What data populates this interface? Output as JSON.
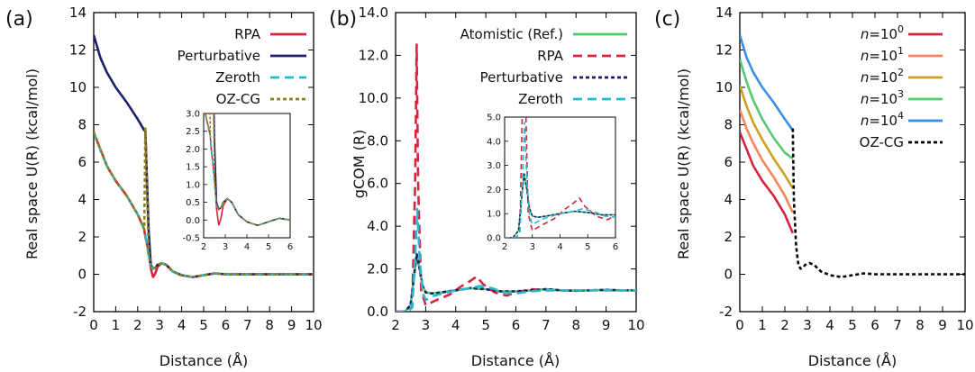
{
  "panels": [
    {
      "label": "(a)",
      "xlabel": "Distance (Å)",
      "ylabel": "Real space U(R) (kcal/mol)"
    },
    {
      "label": "(b)",
      "xlabel": "Distance (Å)",
      "ylabel": "gCOM (R)"
    },
    {
      "label": "(c)",
      "xlabel": "Distance (Å)",
      "ylabel": "Real space U(R) (kcal/mol)"
    }
  ],
  "chart_data": [
    {
      "type": "line",
      "label": "(a)",
      "xlabel": "Distance (Å)",
      "ylabel": "Real space U(R) (kcal/mol)",
      "xlim": [
        0,
        10
      ],
      "ylim": [
        -2,
        14
      ],
      "xticks": [
        "0",
        "1",
        "2",
        "3",
        "4",
        "5",
        "6",
        "7",
        "8",
        "9",
        "10"
      ],
      "yticks": [
        "-2",
        "0",
        "2",
        "4",
        "6",
        "8",
        "10",
        "12",
        "14"
      ],
      "legend_position": "top-right",
      "series": [
        {
          "name": "RPA",
          "color": "#d6243f",
          "style": "solid",
          "x": [
            0,
            0.3,
            0.6,
            1,
            1.5,
            2,
            2.3,
            2.35,
            2.5,
            2.6,
            2.7,
            2.8,
            2.9,
            3.1,
            3.3,
            3.6,
            4,
            4.5,
            5,
            5.5,
            6,
            7,
            8,
            9,
            10
          ],
          "y": [
            7.6,
            6.7,
            5.8,
            5.0,
            4.2,
            3.2,
            2.4,
            2.0,
            1.2,
            0.3,
            -0.15,
            0.05,
            0.4,
            0.6,
            0.5,
            0.15,
            -0.05,
            -0.15,
            -0.05,
            0.05,
            0.0,
            0,
            0,
            0,
            0
          ]
        },
        {
          "name": "Perturbative",
          "color": "#1c1f6e",
          "style": "solid",
          "x": [
            0,
            0.3,
            0.6,
            1,
            1.5,
            2,
            2.3,
            2.35,
            2.5,
            2.6,
            2.7,
            2.8,
            2.9,
            3.1,
            3.3,
            3.6,
            4,
            4.5,
            5,
            5.5,
            6,
            7,
            8,
            9,
            10
          ],
          "y": [
            12.8,
            11.6,
            10.8,
            10.0,
            9.2,
            8.3,
            7.7,
            7.7,
            2.3,
            0.5,
            0.3,
            0.35,
            0.5,
            0.6,
            0.5,
            0.15,
            -0.05,
            -0.15,
            -0.05,
            0.05,
            0.0,
            0,
            0,
            0,
            0
          ]
        },
        {
          "name": "Zeroth",
          "color": "#29b9cf",
          "style": "dashed",
          "x": [
            0,
            0.3,
            0.6,
            1,
            1.5,
            2,
            2.3,
            2.35,
            2.5,
            2.6,
            2.7,
            2.8,
            2.9,
            3.1,
            3.3,
            3.6,
            4,
            4.5,
            5,
            5.5,
            6,
            7,
            8,
            9,
            10
          ],
          "y": [
            7.6,
            6.7,
            5.8,
            5.0,
            4.2,
            3.2,
            2.4,
            2.1,
            1.0,
            0.4,
            0.3,
            0.35,
            0.5,
            0.6,
            0.5,
            0.15,
            -0.05,
            -0.15,
            -0.05,
            0.05,
            0.0,
            0,
            0,
            0,
            0
          ]
        },
        {
          "name": "OZ-CG",
          "color": "#8d7b1f",
          "style": "dotted",
          "x": [
            0,
            0.3,
            0.6,
            1,
            1.5,
            2,
            2.3,
            2.35,
            2.5,
            2.6,
            2.7,
            2.8,
            2.9,
            3.1,
            3.3,
            3.6,
            4,
            4.5,
            5,
            5.5,
            6,
            7,
            8,
            9,
            10
          ],
          "y": [
            7.6,
            6.7,
            5.8,
            5.0,
            4.2,
            3.2,
            2.4,
            7.8,
            1.2,
            0.4,
            0.3,
            0.35,
            0.5,
            0.6,
            0.5,
            0.15,
            -0.05,
            -0.15,
            -0.05,
            0.05,
            0.0,
            0,
            0,
            0,
            0
          ]
        }
      ],
      "inset": {
        "xlim": [
          2,
          6
        ],
        "ylim": [
          -0.5,
          3.0
        ],
        "xticks": [
          "2",
          "3",
          "4",
          "5",
          "6"
        ],
        "yticks": [
          "-0.5",
          "0.0",
          "0.5",
          "1.0",
          "1.5",
          "2.0",
          "2.5",
          "3.0"
        ]
      }
    },
    {
      "type": "line",
      "label": "(b)",
      "xlabel": "Distance (Å)",
      "ylabel": "gCOM (R)",
      "xlim": [
        2,
        10
      ],
      "ylim": [
        0,
        14
      ],
      "xticks": [
        "2",
        "3",
        "4",
        "5",
        "6",
        "7",
        "8",
        "9",
        "10"
      ],
      "yticks": [
        "0.0",
        "2.0",
        "4.0",
        "6.0",
        "8.0",
        "10.0",
        "12.0",
        "14.0"
      ],
      "legend_position": "top-right",
      "series": [
        {
          "name": "Atomistic (Ref.)",
          "color": "#4ec96a",
          "style": "solid",
          "x": [
            2,
            2.3,
            2.5,
            2.6,
            2.7,
            2.8,
            2.9,
            3.0,
            3.2,
            3.5,
            4,
            4.5,
            5,
            5.5,
            6,
            6.5,
            7,
            7.5,
            8,
            8.5,
            9,
            9.5,
            10
          ],
          "y": [
            0,
            0,
            0.3,
            1.5,
            2.6,
            2.0,
            1.2,
            0.9,
            0.85,
            0.9,
            1.0,
            1.1,
            1.05,
            0.95,
            0.95,
            1.0,
            1.05,
            1.0,
            0.98,
            1.0,
            1.02,
            1.0,
            1.0
          ]
        },
        {
          "name": "RPA",
          "color": "#d6243f",
          "style": "dashed",
          "x": [
            2,
            2.4,
            2.55,
            2.65,
            2.7,
            2.75,
            2.85,
            3.0,
            3.3,
            3.8,
            4.2,
            4.5,
            4.7,
            4.9,
            5.3,
            5.7,
            6.0,
            6.5,
            7,
            7.5,
            8,
            8.5,
            9,
            9.5,
            10
          ],
          "y": [
            0,
            0,
            0.2,
            6.0,
            12.5,
            6.0,
            1.0,
            0.3,
            0.5,
            0.8,
            1.2,
            1.45,
            1.65,
            1.3,
            0.9,
            0.75,
            0.9,
            1.05,
            1.0,
            1.0,
            1.0,
            1.0,
            1.0,
            1.0,
            1.0
          ]
        },
        {
          "name": "Perturbative",
          "color": "#1c1f6e",
          "style": "dotted",
          "x": [
            2,
            2.3,
            2.5,
            2.6,
            2.7,
            2.8,
            2.9,
            3.0,
            3.2,
            3.5,
            4,
            4.5,
            5,
            5.5,
            6,
            6.5,
            7,
            7.5,
            8,
            8.5,
            9,
            9.5,
            10
          ],
          "y": [
            0,
            0,
            0.3,
            1.5,
            2.7,
            2.0,
            1.2,
            0.9,
            0.85,
            0.9,
            1.0,
            1.1,
            1.05,
            0.95,
            0.95,
            1.0,
            1.05,
            1.0,
            0.98,
            1.0,
            1.02,
            1.0,
            1.0
          ]
        },
        {
          "name": "Zeroth",
          "color": "#29b9cf",
          "style": "dashed",
          "x": [
            2,
            2.4,
            2.55,
            2.65,
            2.72,
            2.8,
            2.9,
            3.0,
            3.3,
            3.7,
            4,
            4.5,
            4.8,
            5.2,
            5.6,
            6,
            6.5,
            7,
            7.5,
            8,
            8.5,
            9,
            9.5,
            10
          ],
          "y": [
            0,
            0,
            0.2,
            2.5,
            4.8,
            2.5,
            0.9,
            0.55,
            0.75,
            0.9,
            1.0,
            1.1,
            1.2,
            1.1,
            0.9,
            0.85,
            0.95,
            1.0,
            1.0,
            1.0,
            1.0,
            1.0,
            1.0,
            1.0
          ]
        }
      ],
      "inset": {
        "xlim": [
          2,
          6
        ],
        "ylim": [
          0,
          5.0
        ],
        "xticks": [
          "2",
          "3",
          "4",
          "5",
          "6"
        ],
        "yticks": [
          "0.0",
          "1.0",
          "2.0",
          "3.0",
          "4.0",
          "5.0"
        ]
      }
    },
    {
      "type": "line",
      "label": "(c)",
      "xlabel": "Distance (Å)",
      "ylabel": "Real space U(R) (kcal/mol)",
      "xlim": [
        0,
        10
      ],
      "ylim": [
        -2,
        14
      ],
      "xticks": [
        "0",
        "1",
        "2",
        "3",
        "4",
        "5",
        "6",
        "7",
        "8",
        "9",
        "10"
      ],
      "yticks": [
        "-2",
        "0",
        "2",
        "4",
        "6",
        "8",
        "10",
        "12",
        "14"
      ],
      "legend_position": "top-right",
      "series": [
        {
          "name": "n=10^0",
          "color": "#d6243f",
          "style": "solid",
          "x": [
            0,
            0.3,
            0.6,
            1,
            1.5,
            2,
            2.35
          ],
          "y": [
            7.6,
            6.7,
            5.8,
            5.0,
            4.2,
            3.2,
            2.2
          ]
        },
        {
          "name": "n=10^1",
          "color": "#f2875d",
          "style": "solid",
          "x": [
            0,
            0.3,
            0.6,
            1,
            1.5,
            2,
            2.35
          ],
          "y": [
            8.8,
            7.8,
            7.0,
            6.1,
            5.2,
            4.2,
            3.3
          ]
        },
        {
          "name": "n=10^2",
          "color": "#cfa01f",
          "style": "solid",
          "x": [
            0,
            0.3,
            0.6,
            1,
            1.5,
            2,
            2.35
          ],
          "y": [
            10.1,
            9.0,
            8.1,
            7.2,
            6.2,
            5.3,
            4.6
          ]
        },
        {
          "name": "n=10^3",
          "color": "#55c873",
          "style": "solid",
          "x": [
            0,
            0.3,
            0.6,
            1,
            1.5,
            2,
            2.35
          ],
          "y": [
            11.5,
            10.3,
            9.3,
            8.3,
            7.3,
            6.5,
            6.2
          ]
        },
        {
          "name": "n=10^4",
          "color": "#3b8ee6",
          "style": "solid",
          "x": [
            0,
            0.3,
            0.6,
            1,
            1.5,
            2,
            2.35
          ],
          "y": [
            12.8,
            11.6,
            10.8,
            10.0,
            9.2,
            8.3,
            7.7
          ]
        },
        {
          "name": "OZ-CG",
          "color": "#000000",
          "style": "dotted",
          "x": [
            2.35,
            2.4,
            2.5,
            2.6,
            2.7,
            2.8,
            2.9,
            3.1,
            3.3,
            3.6,
            4,
            4.5,
            5,
            5.5,
            6,
            7,
            8,
            9,
            10
          ],
          "y": [
            7.8,
            4.0,
            1.5,
            0.5,
            0.3,
            0.35,
            0.5,
            0.6,
            0.5,
            0.15,
            -0.05,
            -0.15,
            -0.05,
            0.05,
            0.0,
            0,
            0,
            0,
            0
          ]
        }
      ]
    }
  ]
}
